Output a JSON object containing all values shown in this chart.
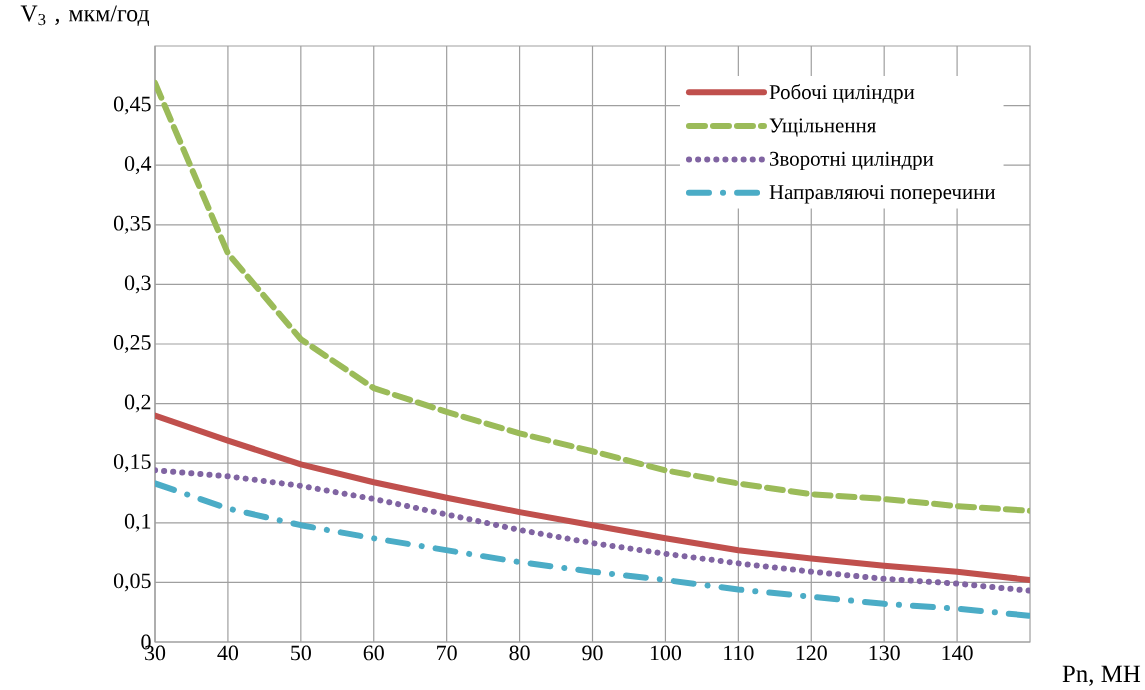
{
  "chart_data": {
    "type": "line",
    "xlabel": "Pn, МН",
    "ylabel": "V$_{3}$ , мкм/год",
    "x": [
      30,
      40,
      50,
      60,
      70,
      80,
      90,
      100,
      110,
      120,
      130,
      140,
      150
    ],
    "series": [
      {
        "name": "Робочі циліндри",
        "color": "#c0504d",
        "line_style": "solid",
        "values": [
          0.19,
          0.169,
          0.149,
          0.134,
          0.121,
          0.109,
          0.098,
          0.087,
          0.077,
          0.07,
          0.064,
          0.059,
          0.052
        ]
      },
      {
        "name": "Ущільнення",
        "color": "#9bbb59",
        "line_style": "dashed",
        "values": [
          0.469,
          0.326,
          0.254,
          0.213,
          0.193,
          0.175,
          0.16,
          0.144,
          0.133,
          0.124,
          0.12,
          0.114,
          0.11
        ]
      },
      {
        "name": "Зворотні циліндри",
        "color": "#8064a2",
        "line_style": "dotted",
        "values": [
          0.144,
          0.139,
          0.131,
          0.12,
          0.107,
          0.094,
          0.083,
          0.074,
          0.066,
          0.059,
          0.053,
          0.049,
          0.043
        ]
      },
      {
        "name": "Направляючі поперечини",
        "color": "#4bacc6",
        "line_style": "dashdot",
        "values": [
          0.133,
          0.112,
          0.098,
          0.087,
          0.077,
          0.067,
          0.059,
          0.052,
          0.044,
          0.038,
          0.032,
          0.028,
          0.022
        ]
      }
    ],
    "xlim": [
      30,
      150
    ],
    "xticks": [
      30,
      40,
      50,
      60,
      70,
      80,
      90,
      100,
      110,
      120,
      130,
      140
    ],
    "ylim": [
      0,
      0.5
    ],
    "yticks": [
      {
        "value": 0,
        "label": "0"
      },
      {
        "value": 0.05,
        "label": "0,05"
      },
      {
        "value": 0.1,
        "label": "0,1"
      },
      {
        "value": 0.15,
        "label": "0,15"
      },
      {
        "value": 0.2,
        "label": "0,2"
      },
      {
        "value": 0.25,
        "label": "0,25"
      },
      {
        "value": 0.3,
        "label": "0,3"
      },
      {
        "value": 0.35,
        "label": "0,35"
      },
      {
        "value": 0.4,
        "label": "0,4"
      },
      {
        "value": 0.45,
        "label": "0,45"
      }
    ],
    "grid": true,
    "legend": "top right"
  }
}
